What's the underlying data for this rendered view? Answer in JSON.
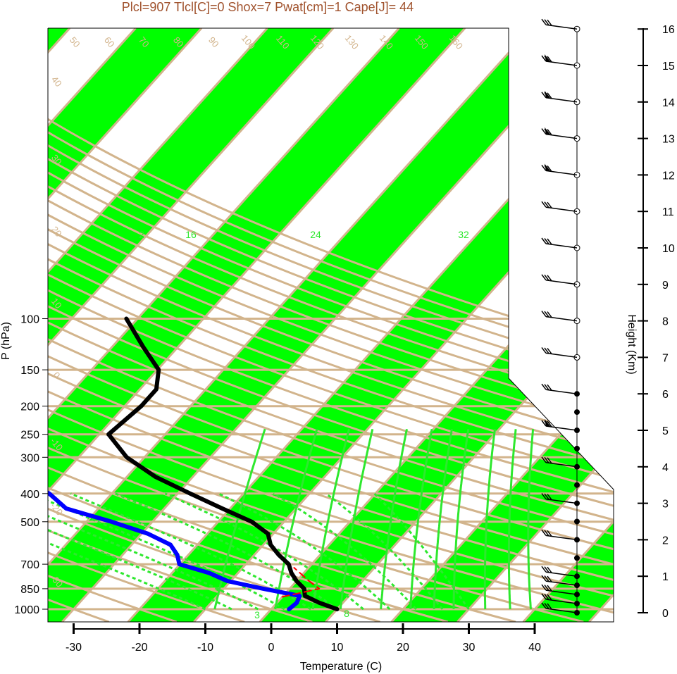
{
  "chart_data": {
    "type": "line",
    "title": "Plcl=907 Tlcl[C]=0 Shox=7 Pwat[cm]=1 Cape[J]= 44",
    "xlabel": "Temperature (C)",
    "ylabel": "P (hPa)",
    "y2label": "Height (Km)",
    "x_ticks": [
      "-30",
      "-20",
      "-10",
      "0",
      "10",
      "20",
      "30",
      "40"
    ],
    "y_ticks": [
      "100",
      "150",
      "200",
      "250",
      "300",
      "400",
      "500",
      "700",
      "850",
      "1000"
    ],
    "height_ticks": [
      "0",
      "1",
      "2",
      "3",
      "4",
      "5",
      "6",
      "7",
      "8",
      "9",
      "10",
      "11",
      "12",
      "13",
      "14",
      "15",
      "16"
    ],
    "mixing_ratio_labels": [
      "2",
      "16",
      "24",
      "32"
    ],
    "dry_adiabat_labels": [
      "50",
      "60",
      "70",
      "80",
      "90",
      "100",
      "110",
      "120",
      "130",
      "140",
      "150",
      "160"
    ],
    "isotherm_labels_left": [
      "40",
      "30",
      "20",
      "10",
      "0",
      "-10",
      "-20",
      "-30"
    ],
    "isotherm_labels_right": [
      "30",
      "20",
      "10",
      "0",
      "10",
      "20",
      "30"
    ],
    "moist_adiabat_labels": [
      "3",
      "8"
    ],
    "temperature_profile": {
      "name": "",
      "p": [
        1000,
        950,
        900,
        850,
        800,
        750,
        700,
        650,
        600,
        550,
        500,
        450,
        400,
        350,
        300,
        250,
        200,
        175,
        150,
        125,
        100
      ],
      "t": [
        10.0,
        6.4,
        3.3,
        2.2,
        0.0,
        -1.9,
        -3.5,
        -6.3,
        -8.9,
        -10.8,
        -14.9,
        -21.2,
        -28.1,
        -35.7,
        -42.7,
        -48.6,
        -47.5,
        -47.5,
        -49.8,
        -55.3,
        -61.7
      ]
    },
    "dewpoint_profile": {
      "name": "",
      "p": [
        1000,
        950,
        900,
        850,
        800,
        750,
        700,
        650,
        600,
        550,
        500,
        450,
        400,
        350,
        300,
        250,
        200,
        175,
        150,
        125,
        100
      ],
      "dp": [
        2.7,
        3.0,
        2.5,
        -4.0,
        -10.5,
        -14.4,
        -20.1,
        -21.7,
        -24.1,
        -29.0,
        -36.2,
        -44.9,
        -49.5,
        -56.2,
        -61.7,
        -69.0,
        -75.8,
        -79.8,
        -83.0,
        -89.4,
        -96.2
      ]
    },
    "parcel_path": {
      "p": [
        907,
        850,
        800,
        750,
        720
      ],
      "t": [
        0.0,
        4.5,
        1.9,
        -0.6,
        -2.2
      ]
    },
    "wind_heights_km": [
      0,
      0.25,
      0.5,
      0.75,
      1,
      1.5,
      2,
      2.5,
      3,
      3.5,
      4,
      4.5,
      5,
      5.5,
      6,
      7,
      8,
      9,
      10,
      11,
      12,
      13,
      14,
      15,
      16
    ],
    "grid": true,
    "legend": "none"
  }
}
